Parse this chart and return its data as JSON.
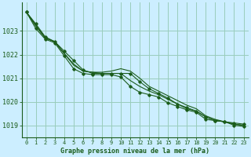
{
  "background_color": "#cceeff",
  "grid_color": "#99ccbb",
  "line_color": "#1a5c1a",
  "text_color": "#1a5c1a",
  "xlabel": "Graphe pression niveau de la mer (hPa)",
  "xlim": [
    -0.5,
    23.5
  ],
  "ylim": [
    1018.5,
    1024.2
  ],
  "yticks": [
    1019,
    1020,
    1021,
    1022,
    1023
  ],
  "xticks": [
    0,
    1,
    2,
    3,
    4,
    5,
    6,
    7,
    8,
    9,
    10,
    11,
    12,
    13,
    14,
    15,
    16,
    17,
    18,
    19,
    20,
    21,
    22,
    23
  ],
  "series": [
    {
      "x": [
        0,
        1,
        2,
        3,
        4,
        5,
        6,
        7,
        8,
        9,
        10,
        11,
        12,
        13,
        14,
        15,
        16,
        17,
        18,
        19,
        20,
        21,
        22,
        23
      ],
      "y": [
        1023.8,
        1023.3,
        1022.75,
        1022.55,
        1022.15,
        1021.75,
        1021.35,
        1021.2,
        1021.2,
        1021.2,
        1021.2,
        1021.2,
        1020.85,
        1020.55,
        1020.35,
        1020.15,
        1019.9,
        1019.75,
        1019.6,
        1019.35,
        1019.2,
        1019.15,
        1019.1,
        1019.05
      ],
      "marker": true
    },
    {
      "x": [
        0,
        1,
        2,
        3,
        4,
        5,
        6,
        7,
        8,
        9,
        10,
        11,
        12,
        13,
        14,
        15,
        16,
        17,
        18,
        19,
        20,
        21,
        22,
        23
      ],
      "y": [
        1023.8,
        1023.25,
        1022.7,
        1022.55,
        1022.05,
        1021.55,
        1021.3,
        1021.25,
        1021.25,
        1021.3,
        1021.4,
        1021.3,
        1021.0,
        1020.65,
        1020.45,
        1020.25,
        1020.05,
        1019.85,
        1019.7,
        1019.4,
        1019.25,
        1019.15,
        1019.05,
        1019.0
      ],
      "marker": false
    },
    {
      "x": [
        0,
        1,
        2,
        3,
        4,
        5,
        6,
        7,
        8,
        9,
        10,
        11,
        12,
        13,
        14,
        15,
        16,
        17,
        18,
        19,
        20,
        21,
        22,
        23
      ],
      "y": [
        1023.8,
        1023.2,
        1022.7,
        1022.55,
        1022.05,
        1021.6,
        1021.3,
        1021.25,
        1021.2,
        1021.2,
        1021.2,
        1020.9,
        1020.65,
        1020.45,
        1020.3,
        1020.1,
        1019.9,
        1019.7,
        1019.6,
        1019.35,
        1019.2,
        1019.15,
        1019.05,
        1019.0
      ],
      "marker": false
    },
    {
      "x": [
        0,
        1,
        2,
        3,
        4,
        5,
        6,
        7,
        8,
        9,
        10,
        11,
        12,
        13,
        14,
        15,
        16,
        17,
        18,
        19,
        20,
        21,
        22,
        23
      ],
      "y": [
        1023.8,
        1023.1,
        1022.65,
        1022.5,
        1021.95,
        1021.4,
        1021.2,
        1021.15,
        1021.15,
        1021.15,
        1021.05,
        1020.65,
        1020.4,
        1020.3,
        1020.2,
        1019.95,
        1019.8,
        1019.65,
        1019.55,
        1019.25,
        1019.2,
        1019.15,
        1019.0,
        1018.95
      ],
      "marker": true
    }
  ]
}
